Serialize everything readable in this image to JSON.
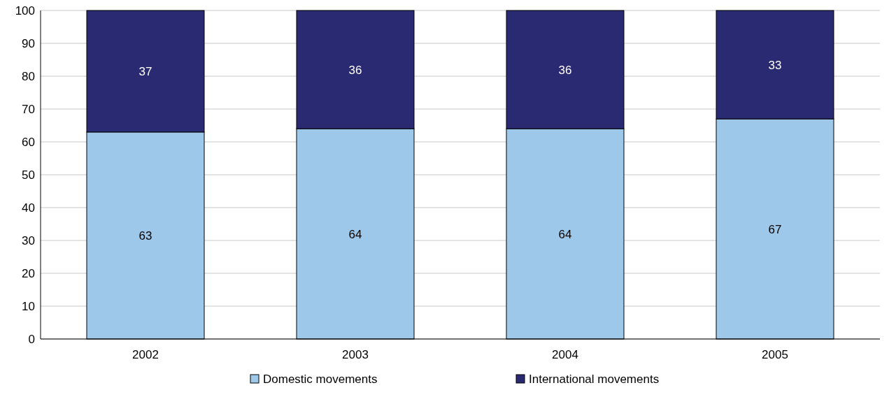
{
  "chart_data": {
    "type": "bar",
    "stacked": true,
    "categories": [
      "2002",
      "2003",
      "2004",
      "2005"
    ],
    "series": [
      {
        "name": "Domestic movements",
        "color": "#9dc8ea",
        "values": [
          63,
          64,
          64,
          67
        ]
      },
      {
        "name": "International movements",
        "color": "#2a2a72",
        "values": [
          37,
          36,
          36,
          33
        ]
      }
    ],
    "ylim": [
      0,
      100
    ],
    "yticks": [
      0,
      10,
      20,
      30,
      40,
      50,
      60,
      70,
      80,
      90,
      100
    ],
    "grid": "y",
    "legend": "bottom",
    "data_labels": true
  }
}
